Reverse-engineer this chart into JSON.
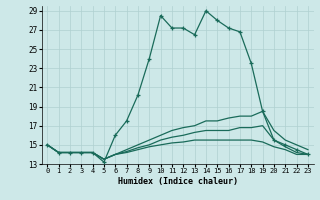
{
  "xlabel": "Humidex (Indice chaleur)",
  "ylabel": "",
  "xlim": [
    -0.5,
    23.5
  ],
  "ylim": [
    13,
    29.5
  ],
  "xticks": [
    0,
    1,
    2,
    3,
    4,
    5,
    6,
    7,
    8,
    9,
    10,
    11,
    12,
    13,
    14,
    15,
    16,
    17,
    18,
    19,
    20,
    21,
    22,
    23
  ],
  "yticks": [
    13,
    15,
    17,
    19,
    21,
    23,
    25,
    27,
    29
  ],
  "background_color": "#cde8e8",
  "grid_color": "#b0d0d0",
  "line_color": "#1a6b5a",
  "series": [
    {
      "x": [
        0,
        1,
        2,
        3,
        4,
        5,
        6,
        7,
        8,
        9,
        10,
        11,
        12,
        13,
        14,
        15,
        16,
        17,
        18,
        19,
        20,
        21,
        22,
        23
      ],
      "y": [
        15,
        14.2,
        14.2,
        14.2,
        14.2,
        13.2,
        16,
        17.5,
        20.2,
        24.0,
        28.5,
        27.2,
        27.2,
        26.5,
        29.0,
        28.0,
        27.2,
        26.8,
        23.5,
        18.5,
        15.5,
        15.0,
        14.5,
        14.0
      ],
      "marker": true
    },
    {
      "x": [
        0,
        1,
        2,
        3,
        4,
        5,
        6,
        7,
        8,
        9,
        10,
        11,
        12,
        13,
        14,
        15,
        16,
        17,
        18,
        19,
        20,
        21,
        22,
        23
      ],
      "y": [
        15,
        14.2,
        14.2,
        14.2,
        14.2,
        13.5,
        14.0,
        14.5,
        15.0,
        15.5,
        16.0,
        16.5,
        16.8,
        17.0,
        17.5,
        17.5,
        17.8,
        18.0,
        18.0,
        18.5,
        16.5,
        15.5,
        15.0,
        14.5
      ],
      "marker": false
    },
    {
      "x": [
        0,
        1,
        2,
        3,
        4,
        5,
        6,
        7,
        8,
        9,
        10,
        11,
        12,
        13,
        14,
        15,
        16,
        17,
        18,
        19,
        20,
        21,
        22,
        23
      ],
      "y": [
        15,
        14.2,
        14.2,
        14.2,
        14.2,
        13.5,
        14.0,
        14.3,
        14.7,
        15.0,
        15.5,
        15.8,
        16.0,
        16.3,
        16.5,
        16.5,
        16.5,
        16.8,
        16.8,
        17.0,
        15.5,
        14.8,
        14.2,
        14.0
      ],
      "marker": false
    },
    {
      "x": [
        0,
        1,
        2,
        3,
        4,
        5,
        6,
        7,
        8,
        9,
        10,
        11,
        12,
        13,
        14,
        15,
        16,
        17,
        18,
        19,
        20,
        21,
        22,
        23
      ],
      "y": [
        15,
        14.2,
        14.2,
        14.2,
        14.2,
        13.5,
        14.0,
        14.2,
        14.5,
        14.8,
        15.0,
        15.2,
        15.3,
        15.5,
        15.5,
        15.5,
        15.5,
        15.5,
        15.5,
        15.3,
        14.8,
        14.5,
        14.0,
        14.0
      ],
      "marker": false
    }
  ]
}
